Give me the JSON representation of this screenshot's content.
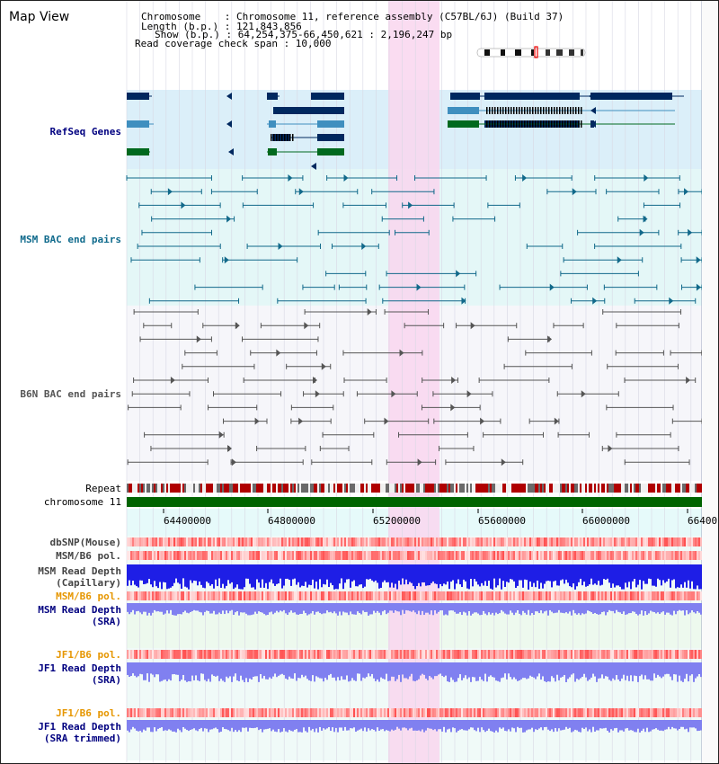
{
  "title": "Map View",
  "info": {
    "chromosome": "Chromosome    : Chromosome 11, reference assembly (C57BL/6J) (Build 37)",
    "length": "Length (b.p.) : 121,843,856",
    "show": "Show (b.p.) : 64,254,375-66,450,621 : 2,196,247 bp",
    "coverage": "Read coverage check span : 10,000"
  },
  "tracks": {
    "refseq": "RefSeq Genes",
    "msm_bac": "MSM BAC end pairs",
    "b6n_bac": "B6N BAC end pairs",
    "repeat": "Repeat",
    "chromosome": "chromosome 11",
    "dbsnp": "dbSNP(Mouse)",
    "msm_b6_pol_1": "MSM/B6 pol.",
    "msm_depth_cap_1": "MSM Read Depth",
    "msm_depth_cap_2": "(Capillary)",
    "msm_b6_pol_2": "MSM/B6 pol.",
    "msm_depth_sra_1": "MSM Read Depth",
    "msm_depth_sra_2": "(SRA)",
    "jf1_pol_1": "JF1/B6 pol.",
    "jf1_depth_sra_1": "JF1 Read Depth",
    "jf1_depth_sra_2": "(SRA)",
    "jf1_pol_2": "JF1/B6 pol.",
    "jf1_depth_trim_1": "JF1 Read Depth",
    "jf1_depth_trim_2": "(SRA trimmed)"
  },
  "axis": {
    "ticks": [
      "64400000",
      "64800000",
      "65200000",
      "65600000",
      "66000000",
      "66400"
    ]
  },
  "colors": {
    "refseq_bg": "#dbeff9",
    "msm_bg": "#e4f7f7",
    "highlight": "#f9d6ef",
    "gene_dark": "#00285f",
    "gene_mid": "#3f8fbf",
    "gene_green": "#00691e",
    "bac_teal": "#11698a",
    "bac_gray": "#555555",
    "chrom_green": "#006400",
    "depth_blue": "#1e1ee6",
    "depth_light": "#8080f0",
    "label_blue": "#000080",
    "label_orange": "#e69600",
    "label_teal": "#0f6a8c"
  }
}
